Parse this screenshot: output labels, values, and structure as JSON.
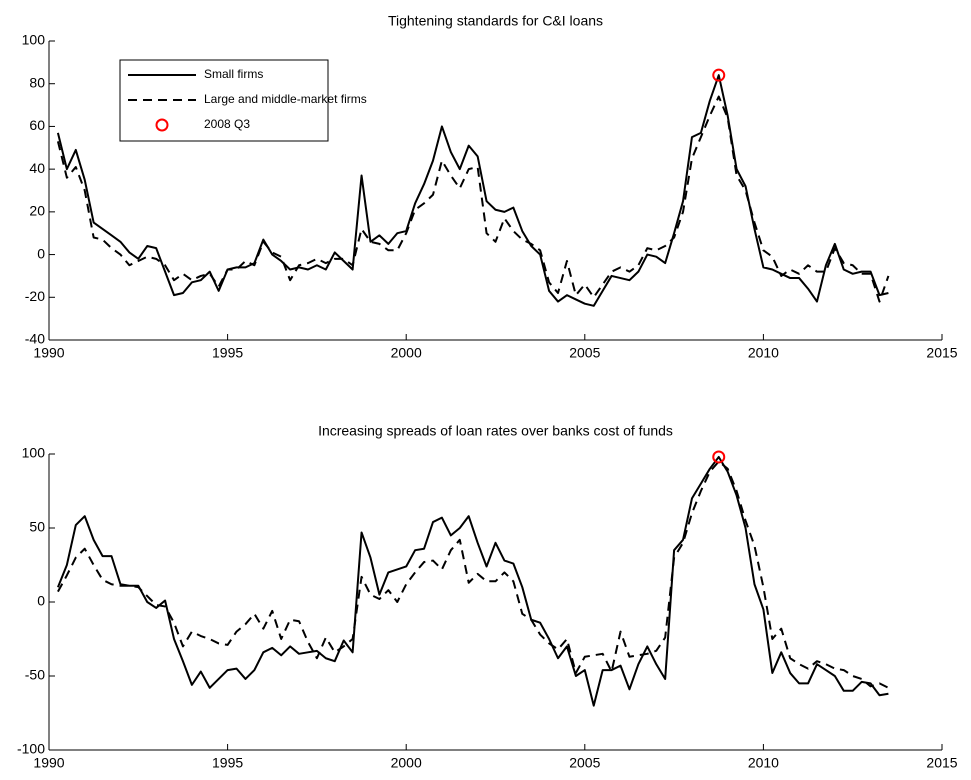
{
  "chart_data": [
    {
      "type": "line",
      "title": "Tightening standards for C&I loans",
      "x": [
        1990.25,
        1990.5,
        1990.75,
        1991,
        1991.25,
        1991.5,
        1991.75,
        1992,
        1992.25,
        1992.5,
        1992.75,
        1993,
        1993.25,
        1993.5,
        1993.75,
        1994,
        1994.25,
        1994.5,
        1994.75,
        1995,
        1995.25,
        1995.5,
        1995.75,
        1996,
        1996.25,
        1996.5,
        1996.75,
        1997,
        1997.25,
        1997.5,
        1997.75,
        1998,
        1998.25,
        1998.5,
        1998.75,
        1999,
        1999.25,
        1999.5,
        1999.75,
        2000,
        2000.25,
        2000.5,
        2000.75,
        2001,
        2001.25,
        2001.5,
        2001.75,
        2002,
        2002.25,
        2002.5,
        2002.75,
        2003,
        2003.25,
        2003.5,
        2003.75,
        2004,
        2004.25,
        2004.5,
        2004.75,
        2005,
        2005.25,
        2005.5,
        2005.75,
        2006,
        2006.25,
        2006.5,
        2006.75,
        2007,
        2007.25,
        2007.5,
        2007.75,
        2008,
        2008.25,
        2008.5,
        2008.75,
        2009,
        2009.25,
        2009.5,
        2009.75,
        2010,
        2010.25,
        2010.5,
        2010.75,
        2011,
        2011.25,
        2011.5,
        2011.75,
        2012,
        2012.25,
        2012.5,
        2012.75,
        2013,
        2013.25,
        2013.5
      ],
      "series": [
        {
          "name": "Small firms",
          "color": "#000000",
          "style": "solid",
          "values": [
            57,
            40,
            49,
            35,
            15,
            12,
            9,
            6,
            1,
            -2,
            4,
            3,
            -8,
            -19,
            -18,
            -13,
            -12,
            -8,
            -17,
            -7,
            -6,
            -6,
            -4,
            7,
            0,
            -3,
            -7,
            -6,
            -7,
            -5,
            -7,
            1,
            -3,
            -7,
            37,
            6,
            9,
            5,
            10,
            11,
            24,
            33,
            44,
            60,
            48,
            40,
            51,
            46,
            25,
            21,
            20,
            22,
            11,
            4,
            0,
            -17,
            -22,
            -19,
            -21,
            -23,
            -24,
            -17,
            -10,
            -11,
            -12,
            -8,
            0,
            -1,
            -4,
            10,
            25,
            55,
            57,
            72,
            84,
            65,
            40,
            32,
            12,
            -6,
            -7,
            -9,
            -11,
            -11,
            -16,
            -22,
            -5,
            5,
            -7,
            -9,
            -8,
            -8,
            -19,
            -18
          ]
        },
        {
          "name": "Large and middle-market firms",
          "color": "#000000",
          "style": "dashed",
          "values": [
            53,
            36,
            41,
            30,
            8,
            7,
            3,
            0,
            -5,
            -3,
            -1,
            -2,
            -5,
            -12,
            -9,
            -12,
            -10,
            -9,
            -15,
            -7,
            -7,
            -3,
            -5,
            6,
            1,
            -1,
            -12,
            -5,
            -4,
            -2,
            -4,
            -2,
            -2,
            -5,
            12,
            6,
            5,
            2,
            2,
            10,
            21,
            24,
            28,
            44,
            37,
            31,
            40,
            41,
            10,
            6,
            17,
            11,
            7,
            5,
            2,
            -13,
            -18,
            -3,
            -19,
            -14,
            -20,
            -14,
            -8,
            -6,
            -8,
            -5,
            3,
            2,
            4,
            8,
            20,
            45,
            55,
            65,
            74,
            64,
            37,
            30,
            15,
            2,
            -1,
            -10,
            -7,
            -9,
            -5,
            -8,
            -8,
            3,
            -4,
            -5,
            -9,
            -9,
            -22,
            -10
          ]
        },
        {
          "name": "2008 Q3",
          "color": "#ff0000",
          "style": "marker",
          "x": [
            2008.75
          ],
          "values": [
            84
          ]
        }
      ],
      "xlim": [
        1990,
        2015
      ],
      "xticks": [
        1990,
        1995,
        2000,
        2005,
        2010,
        2015
      ],
      "ylim": [
        -40,
        100
      ],
      "yticks": [
        -40,
        -20,
        0,
        20,
        40,
        60,
        80,
        100
      ],
      "legend": "upper left"
    },
    {
      "type": "line",
      "title": "Increasing spreads of loan rates over banks cost of funds",
      "x": [
        1990.25,
        1990.5,
        1990.75,
        1991,
        1991.25,
        1991.5,
        1991.75,
        1992,
        1992.25,
        1992.5,
        1992.75,
        1993,
        1993.25,
        1993.5,
        1993.75,
        1994,
        1994.25,
        1994.5,
        1994.75,
        1995,
        1995.25,
        1995.5,
        1995.75,
        1996,
        1996.25,
        1996.5,
        1996.75,
        1997,
        1997.25,
        1997.5,
        1997.75,
        1998,
        1998.25,
        1998.5,
        1998.75,
        1999,
        1999.25,
        1999.5,
        1999.75,
        2000,
        2000.25,
        2000.5,
        2000.75,
        2001,
        2001.25,
        2001.5,
        2001.75,
        2002,
        2002.25,
        2002.5,
        2002.75,
        2003,
        2003.25,
        2003.5,
        2003.75,
        2004,
        2004.25,
        2004.5,
        2004.75,
        2005,
        2005.25,
        2005.5,
        2005.75,
        2006,
        2006.25,
        2006.5,
        2006.75,
        2007,
        2007.25,
        2007.5,
        2007.75,
        2008,
        2008.25,
        2008.5,
        2008.75,
        2009,
        2009.25,
        2009.5,
        2009.75,
        2010,
        2010.25,
        2010.5,
        2010.75,
        2011,
        2011.25,
        2011.5,
        2011.75,
        2012,
        2012.25,
        2012.5,
        2012.75,
        2013,
        2013.25,
        2013.5
      ],
      "series": [
        {
          "color": "#000000",
          "style": "solid",
          "values": [
            10,
            25,
            52,
            58,
            42,
            31,
            31,
            12,
            11,
            11,
            0,
            -4,
            1,
            -25,
            -40,
            -56,
            -47,
            -58,
            -52,
            -46,
            -45,
            -52,
            -46,
            -34,
            -31,
            -36,
            -30,
            -35,
            -34,
            -33,
            -38,
            -40,
            -26,
            -34,
            47,
            30,
            5,
            20,
            22,
            24,
            35,
            36,
            54,
            57,
            45,
            50,
            58,
            40,
            24,
            40,
            28,
            26,
            10,
            -12,
            -14,
            -25,
            -38,
            -30,
            -50,
            -46,
            -70,
            -46,
            -46,
            -43,
            -59,
            -42,
            -30,
            -42,
            -52,
            35,
            42,
            70,
            80,
            90,
            98,
            88,
            72,
            50,
            12,
            -5,
            -48,
            -34,
            -48,
            -55,
            -55,
            -42,
            -46,
            -50,
            -60,
            -60,
            -54,
            -55,
            -63,
            -62
          ]
        },
        {
          "color": "#000000",
          "style": "dashed",
          "values": [
            7,
            18,
            30,
            36,
            25,
            15,
            12,
            11,
            11,
            10,
            4,
            -2,
            -3,
            -14,
            -30,
            -20,
            -23,
            -25,
            -28,
            -29,
            -20,
            -15,
            -8,
            -18,
            -6,
            -25,
            -12,
            -13,
            -27,
            -38,
            -24,
            -34,
            -30,
            -25,
            17,
            5,
            2,
            8,
            0,
            12,
            20,
            27,
            28,
            22,
            35,
            42,
            13,
            19,
            14,
            14,
            20,
            14,
            -8,
            -12,
            -22,
            -28,
            -32,
            -25,
            -48,
            -37,
            -36,
            -35,
            -47,
            -20,
            -37,
            -36,
            -35,
            -33,
            -24,
            30,
            40,
            60,
            75,
            88,
            95,
            90,
            75,
            55,
            38,
            10,
            -25,
            -18,
            -38,
            -42,
            -45,
            -40,
            -42,
            -45,
            -46,
            -50,
            -52,
            -57,
            -55,
            -58
          ]
        },
        {
          "color": "#ff0000",
          "style": "marker",
          "x": [
            2008.75
          ],
          "values": [
            98
          ]
        }
      ],
      "xlim": [
        1990,
        2015
      ],
      "xticks": [
        1990,
        1995,
        2000,
        2005,
        2010,
        2015
      ],
      "ylim": [
        -100,
        100
      ],
      "yticks": [
        -100,
        -50,
        0,
        50,
        100
      ]
    }
  ]
}
